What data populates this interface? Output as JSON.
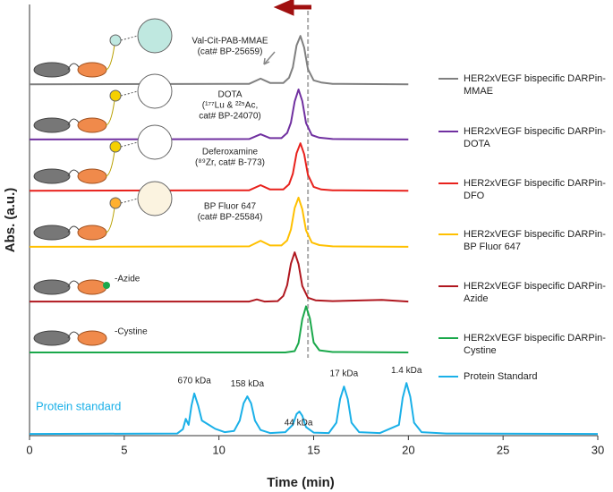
{
  "chart_data": {
    "type": "line",
    "xlabel": "Time (min)",
    "ylabel": "Abs. (a.u.)",
    "xlim": [
      0,
      30
    ],
    "xticks": [
      0,
      5,
      10,
      15,
      20,
      25,
      30
    ],
    "ylim": [
      0,
      100
    ],
    "reference_line_x": 14.7,
    "series": [
      {
        "name": "HER2xVEGF bispecific DARPin-MMAE",
        "color": "#808080",
        "x": [
          0,
          11.6,
          12.2,
          12.7,
          13.4,
          13.7,
          13.9,
          14.1,
          14.3,
          14.5,
          14.7,
          15.0,
          15.4,
          16,
          20
        ],
        "values": [
          81.5,
          81.6,
          82.8,
          81.8,
          81.8,
          83,
          85.4,
          90.5,
          92.7,
          90,
          85,
          82.4,
          81.9,
          81.6,
          81.5
        ]
      },
      {
        "name": "HER2xVEGF bispecific DARPin-DOTA",
        "color": "#7030a0",
        "x": [
          0,
          11.6,
          12.2,
          12.7,
          13.3,
          13.6,
          13.8,
          14.0,
          14.2,
          14.4,
          14.6,
          14.9,
          15.3,
          16,
          20
        ],
        "values": [
          68.7,
          68.8,
          69.9,
          69,
          69,
          70.2,
          72.6,
          77.5,
          80.3,
          77.6,
          72.5,
          69.7,
          69.1,
          68.8,
          68.7
        ]
      },
      {
        "name": "HER2xVEGF bispecific DARPin-DFO",
        "color": "#e8211c",
        "x": [
          0,
          11.6,
          12.2,
          12.7,
          13.4,
          13.7,
          13.9,
          14.1,
          14.3,
          14.5,
          14.7,
          15.0,
          15.4,
          16,
          20
        ],
        "values": [
          56.8,
          56.9,
          58.1,
          57.1,
          57.1,
          58.3,
          60.7,
          65.5,
          67.8,
          65.3,
          60.5,
          57.7,
          57.1,
          56.9,
          56.8
        ]
      },
      {
        "name": "HER2xVEGF bispecific DARPin-BP Fluor 647",
        "color": "#ffc000",
        "x": [
          0,
          11.6,
          12.2,
          12.7,
          13.3,
          13.6,
          13.8,
          14.0,
          14.2,
          14.4,
          14.6,
          14.9,
          15.3,
          16,
          20
        ],
        "values": [
          43.8,
          43.9,
          45.2,
          44.1,
          44.1,
          45.3,
          47.8,
          52.8,
          55.2,
          52.5,
          47.6,
          44.8,
          44.2,
          43.9,
          43.8
        ]
      },
      {
        "name": "HER2xVEGF bispecific DARPin-Azide",
        "color": "#b0171f",
        "x": [
          0,
          11.6,
          12.0,
          12.4,
          13.1,
          13.4,
          13.6,
          13.8,
          14.0,
          14.2,
          14.4,
          14.7,
          15.1,
          16,
          18.6,
          20
        ],
        "values": [
          31.1,
          31.1,
          31.6,
          31.1,
          31.2,
          32.4,
          34.9,
          39.9,
          42.5,
          39.8,
          34.7,
          32,
          31.4,
          31.2,
          31.5,
          31.1
        ]
      },
      {
        "name": "HER2xVEGF bispecific DARPin-Cystine",
        "color": "#1aa84b",
        "x": [
          0,
          13.5,
          14.0,
          14.2,
          14.4,
          14.6,
          14.8,
          15.0,
          15.3,
          16,
          20
        ],
        "values": [
          19.3,
          19.3,
          19.6,
          21.5,
          27,
          30,
          27.2,
          21.6,
          19.8,
          19.4,
          19.3
        ]
      },
      {
        "name": "Protein Standard",
        "color": "#1ab0e8",
        "x": [
          0,
          7.8,
          8.1,
          8.25,
          8.4,
          8.55,
          8.7,
          8.9,
          9.1,
          9.5,
          9.8,
          10.3,
          10.8,
          11.1,
          11.3,
          11.5,
          11.7,
          11.9,
          12.2,
          12.7,
          13.5,
          13.9,
          14.1,
          14.25,
          14.4,
          14.6,
          15.0,
          15.8,
          16.2,
          16.4,
          16.6,
          16.8,
          17.0,
          17.4,
          18.5,
          19.5,
          19.7,
          19.9,
          20.1,
          20.3,
          20.7,
          22,
          30
        ],
        "values": [
          0.4,
          0.5,
          1.5,
          3.9,
          2.5,
          7,
          9.8,
          7,
          3.5,
          2.4,
          1.6,
          0.8,
          1.1,
          3.5,
          7.5,
          9.1,
          7.5,
          3.5,
          1.3,
          0.6,
          0.8,
          2.5,
          5,
          5.6,
          4.6,
          2,
          0.7,
          0.6,
          3,
          8.5,
          11.4,
          8.5,
          3,
          0.8,
          0.6,
          2.5,
          8.8,
          12.2,
          9,
          3,
          0.8,
          0.5,
          0.4
        ]
      }
    ],
    "construct_labels": [
      [
        "Val-Cit-PAB-MMAE",
        "(cat# BP-25659)"
      ],
      [
        "DOTA",
        "(¹⁷⁷Lu & ²²⁵Ac,",
        "cat# BP-24070)"
      ],
      [
        "Deferoxamine",
        "(⁸⁹Zr, cat# B-773)"
      ],
      [
        "BP Fluor 647",
        "(cat# BP-25584)"
      ],
      [
        "-Azide"
      ],
      [
        "-Cystine"
      ]
    ],
    "standard_label": "Protein standard",
    "peak_labels": [
      {
        "label": "670 kDa",
        "x": 8.7
      },
      {
        "label": "158 kDa",
        "x": 11.5
      },
      {
        "label": "44 kDa",
        "x": 14.2
      },
      {
        "label": "17 kDa",
        "x": 16.6
      },
      {
        "label": "1.4 kDa",
        "x": 19.9
      }
    ]
  }
}
